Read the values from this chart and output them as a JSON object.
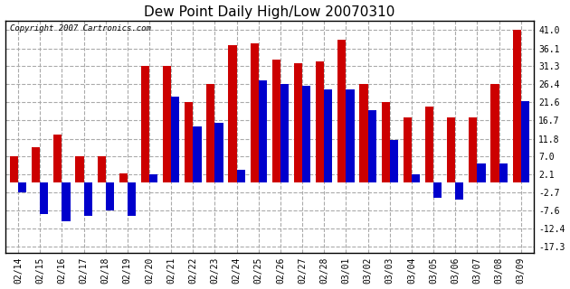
{
  "title": "Dew Point Daily High/Low 20070310",
  "copyright": "Copyright 2007 Cartronics.com",
  "dates": [
    "02/14",
    "02/15",
    "02/16",
    "02/17",
    "02/18",
    "02/19",
    "02/20",
    "02/21",
    "02/22",
    "02/23",
    "02/24",
    "02/25",
    "02/26",
    "02/27",
    "02/28",
    "03/01",
    "03/02",
    "03/03",
    "03/04",
    "03/05",
    "03/06",
    "03/07",
    "03/08",
    "03/09"
  ],
  "highs": [
    7.0,
    9.5,
    13.0,
    7.0,
    7.0,
    2.5,
    31.3,
    31.3,
    21.6,
    26.4,
    37.0,
    37.5,
    33.0,
    32.0,
    32.5,
    38.5,
    26.4,
    21.6,
    17.5,
    20.5,
    17.5,
    17.5,
    26.4,
    41.0
  ],
  "lows": [
    -2.7,
    -8.5,
    -10.5,
    -9.0,
    -7.5,
    -9.0,
    2.1,
    23.0,
    15.0,
    16.0,
    3.5,
    27.5,
    26.4,
    26.0,
    25.0,
    25.0,
    19.5,
    11.5,
    2.1,
    -4.0,
    -4.5,
    5.0,
    5.0,
    22.0
  ],
  "high_color": "#cc0000",
  "low_color": "#0000cc",
  "bg_color": "#ffffff",
  "grid_color": "#aaaaaa",
  "yticks": [
    41.0,
    36.1,
    31.3,
    26.4,
    21.6,
    16.7,
    11.8,
    7.0,
    2.1,
    -2.7,
    -7.6,
    -12.4,
    -17.3
  ],
  "ymin": -19.0,
  "ymax": 43.5,
  "title_fontsize": 11,
  "tick_fontsize": 7,
  "copyright_fontsize": 6.5
}
